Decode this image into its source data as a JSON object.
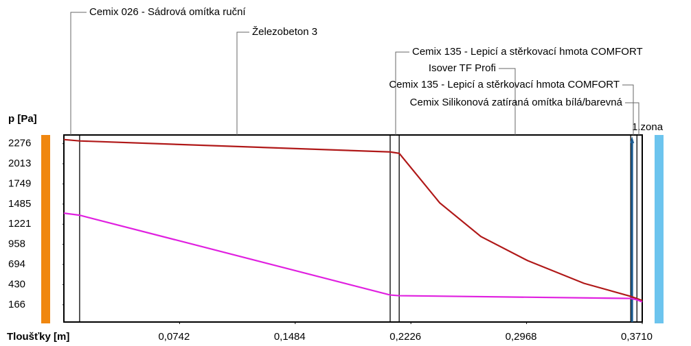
{
  "chart_data": {
    "type": "line",
    "ylabel": "p [Pa]",
    "xlabel": "Tloušťky [m]",
    "zone_label": "1.zona",
    "xlim": [
      0,
      0.371
    ],
    "ylim": [
      -60,
      2390
    ],
    "xticks": [
      {
        "value": 0.0742,
        "label": "0,0742"
      },
      {
        "value": 0.1484,
        "label": "0,1484"
      },
      {
        "value": 0.2226,
        "label": "0,2226"
      },
      {
        "value": 0.2968,
        "label": "0,2968"
      },
      {
        "value": 0.371,
        "label": "0,3710"
      }
    ],
    "yticks": [
      2276,
      2013,
      1749,
      1485,
      1221,
      958,
      694,
      430,
      166
    ],
    "layers": [
      "Cemix 026 - Sádrová omítka ruční",
      "Železobeton 3",
      "Cemix 135 - Lepicí a stěrkovací hmota COMFORT",
      "Isover TF Profi",
      "Cemix 135 - Lepicí a stěrkovací hmota COMFORT",
      "Cemix Silikonová zatíraná omítka bílá/barevná"
    ],
    "boundaries": [
      0.0101,
      0.2093,
      0.2151,
      0.3636,
      0.3676
    ],
    "series": [
      {
        "color": "#b01818",
        "x": [
          0,
          0.0101,
          0.2093,
          0.2151,
          0.2411,
          0.2675,
          0.2975,
          0.3336,
          0.3636,
          0.371
        ],
        "values": [
          2330,
          2312,
          2168,
          2150,
          1501,
          1060,
          744,
          447,
          276,
          222
        ]
      },
      {
        "color": "#e020e0",
        "x": [
          0,
          0.0101,
          0.2093,
          0.2151,
          0.3636,
          0.3676,
          0.371
        ],
        "values": [
          1366,
          1339,
          294,
          285,
          249,
          231,
          204
        ]
      }
    ]
  }
}
